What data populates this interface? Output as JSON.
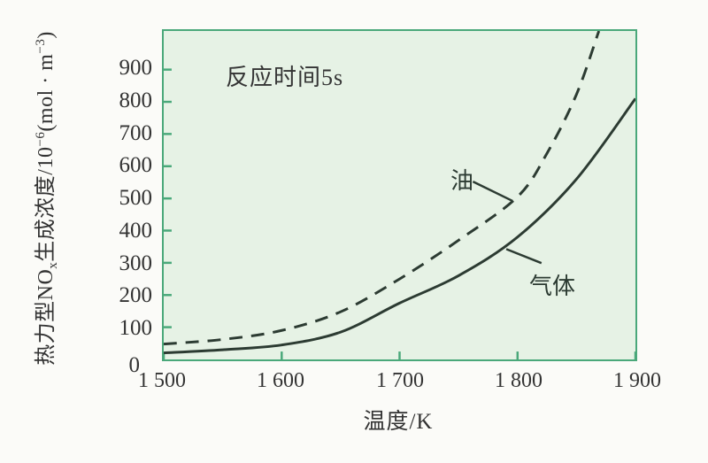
{
  "chart": {
    "annotation": "反应时间5s",
    "y_axis_label_parts": {
      "p0": "热力型NO",
      "sub1": "x",
      "p2": "生成浓度/10",
      "sup3": "−6",
      "p4": "(mol · m",
      "sup5": "−3",
      "p6": ")"
    },
    "colors": {
      "plot_fill": "#e6f2e5",
      "plot_border": "#4aa87a",
      "curve": "#2c3b32",
      "text": "#333333"
    }
  },
  "chart_data": {
    "type": "line",
    "title": "",
    "annotation": "反应时间5s",
    "xlabel": "温度/K",
    "ylabel": "热力型NOx生成浓度/10−6(mol·m−3)",
    "xlim": [
      1500,
      1900
    ],
    "ylim": [
      0,
      1020
    ],
    "grid": false,
    "legend_position": "inline-labels",
    "x_ticks": [
      {
        "label": "1 500",
        "value": 1500
      },
      {
        "label": "1 600",
        "value": 1600
      },
      {
        "label": "1 700",
        "value": 1700
      },
      {
        "label": "1 800",
        "value": 1800
      },
      {
        "label": "1 900",
        "value": 1900
      }
    ],
    "y_ticks": [
      {
        "label": "0",
        "value": 0
      },
      {
        "label": "100",
        "value": 100
      },
      {
        "label": "200",
        "value": 200
      },
      {
        "label": "300",
        "value": 300
      },
      {
        "label": "400",
        "value": 400
      },
      {
        "label": "500",
        "value": 500
      },
      {
        "label": "600",
        "value": 600
      },
      {
        "label": "700",
        "value": 700
      },
      {
        "label": "800",
        "value": 800
      },
      {
        "label": "900",
        "value": 900
      }
    ],
    "series": [
      {
        "name": "油",
        "line_style": "dashed",
        "x": [
          1500,
          1550,
          1600,
          1650,
          1700,
          1750,
          1800,
          1825,
          1850,
          1869
        ],
        "y": [
          48,
          62,
          90,
          148,
          250,
          370,
          505,
          640,
          823,
          1020
        ]
      },
      {
        "name": "气体",
        "line_style": "solid",
        "x": [
          1500,
          1550,
          1600,
          1650,
          1700,
          1750,
          1800,
          1850,
          1900
        ],
        "y": [
          20,
          30,
          45,
          85,
          175,
          260,
          380,
          560,
          810
        ]
      }
    ]
  }
}
